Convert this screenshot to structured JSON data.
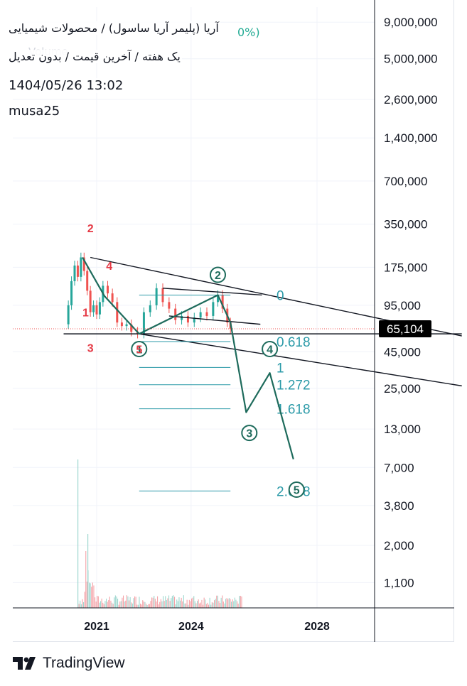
{
  "header": {
    "title": "آریا (پلیمر آریا ساسول) / محصولات شیمیایی",
    "change_fragment": "0%)",
    "subtitle": "یک هفته / آخرین قیمت / بدون تعدیل",
    "datetime": "1404/05/26 13:02",
    "author": "musa25",
    "volume_ghost": "Volume"
  },
  "footer": {
    "brand": "TradingView"
  },
  "colors": {
    "wave": "#1e6b5c",
    "fib": "#2b9aa8",
    "red_label": "#e53945",
    "trend": "#131722",
    "price_badge": "#000000",
    "vol_up": "#9fd7cf",
    "vol_down": "#f4a3a8"
  },
  "chart_data": {
    "type": "candlestick",
    "scale": "log",
    "ylim": [
      700,
      10000000
    ],
    "current_price": 65104,
    "current_price_label": "65,104",
    "y_ticks": [
      {
        "value": 9000000,
        "label": "9,000,000"
      },
      {
        "value": 5000000,
        "label": "5,000,000"
      },
      {
        "value": 2600000,
        "label": "2,600,000"
      },
      {
        "value": 1400000,
        "label": "1,400,000"
      },
      {
        "value": 700000,
        "label": "700,000"
      },
      {
        "value": 350000,
        "label": "350,000"
      },
      {
        "value": 175000,
        "label": "175,000"
      },
      {
        "value": 95000,
        "label": "95,000"
      },
      {
        "value": 45000,
        "label": "45,000"
      },
      {
        "value": 25000,
        "label": "25,000"
      },
      {
        "value": 13000,
        "label": "13,000"
      },
      {
        "value": 7000,
        "label": "7,000"
      },
      {
        "value": 3800,
        "label": "3,800"
      },
      {
        "value": 2000,
        "label": "2,000"
      },
      {
        "value": 1100,
        "label": "1,100"
      }
    ],
    "x_ticks": [
      "2021",
      "2024",
      "2028"
    ],
    "x_range": [
      2019.7,
      2032.6
    ],
    "fib_levels": [
      {
        "value": 112000,
        "label": "0"
      },
      {
        "value": 53000,
        "label": "0.618"
      },
      {
        "value": 35000,
        "label": "1"
      },
      {
        "value": 26500,
        "label": "1.272"
      },
      {
        "value": 18000,
        "label": "1.618"
      },
      {
        "value": 4800,
        "label": "2.618"
      }
    ],
    "wave_path": [
      {
        "x": 2020.55,
        "y": 205000
      },
      {
        "x": 2021.25,
        "y": 110000
      },
      {
        "x": 2022.35,
        "y": 60000
      },
      {
        "x": 2024.85,
        "y": 112000
      },
      {
        "x": 2025.25,
        "y": 72000
      },
      {
        "x": 2025.75,
        "y": 17000
      },
      {
        "x": 2026.5,
        "y": 32000
      },
      {
        "x": 2027.25,
        "y": 8000
      }
    ],
    "wave_labels": [
      {
        "label": "2",
        "x": 2024.85,
        "y": 155000
      },
      {
        "label": "4",
        "x": 2026.5,
        "y": 47000
      },
      {
        "label": "3",
        "x": 2025.85,
        "y": 12200
      },
      {
        "label": "5",
        "x": 2027.35,
        "y": 4900
      },
      {
        "label": "1",
        "x": 2022.35,
        "y": 47000
      }
    ],
    "sub_wave_labels": [
      {
        "label": "2",
        "x": 2020.8,
        "y": 330000
      },
      {
        "label": "4",
        "x": 2021.4,
        "y": 180000
      },
      {
        "label": "1",
        "x": 2020.65,
        "y": 85000
      },
      {
        "label": "3",
        "x": 2020.8,
        "y": 48000
      },
      {
        "label": "5",
        "x": 2022.35,
        "y": 47000
      }
    ],
    "trendlines": [
      {
        "x1": 2020.8,
        "y1": 205000,
        "x2": 2032.6,
        "y2": 58000
      },
      {
        "x1": 2022.35,
        "y1": 60000,
        "x2": 2032.6,
        "y2": 26000
      },
      {
        "x1": 2019.95,
        "y1": 60000,
        "x2": 2032.6,
        "y2": 60000
      },
      {
        "x1": 2023.1,
        "y1": 125000,
        "x2": 2026.25,
        "y2": 112000
      },
      {
        "x1": 2023.3,
        "y1": 80000,
        "x2": 2026.2,
        "y2": 70000
      }
    ],
    "price_series": [
      {
        "x": 2020.0,
        "y": 70000
      },
      {
        "x": 2020.1,
        "y": 95000
      },
      {
        "x": 2020.2,
        "y": 140000
      },
      {
        "x": 2020.3,
        "y": 180000
      },
      {
        "x": 2020.4,
        "y": 150000
      },
      {
        "x": 2020.5,
        "y": 205000
      },
      {
        "x": 2020.6,
        "y": 165000
      },
      {
        "x": 2020.7,
        "y": 120000
      },
      {
        "x": 2020.8,
        "y": 85000
      },
      {
        "x": 2020.9,
        "y": 95000
      },
      {
        "x": 2021.0,
        "y": 82000
      },
      {
        "x": 2021.1,
        "y": 100000
      },
      {
        "x": 2021.2,
        "y": 130000
      },
      {
        "x": 2021.35,
        "y": 115000
      },
      {
        "x": 2021.5,
        "y": 100000
      },
      {
        "x": 2021.65,
        "y": 72000
      },
      {
        "x": 2021.8,
        "y": 68000
      },
      {
        "x": 2021.95,
        "y": 70000
      },
      {
        "x": 2022.1,
        "y": 62000
      },
      {
        "x": 2022.3,
        "y": 60000
      },
      {
        "x": 2022.5,
        "y": 85000
      },
      {
        "x": 2022.7,
        "y": 95000
      },
      {
        "x": 2022.9,
        "y": 125000
      },
      {
        "x": 2023.1,
        "y": 100000
      },
      {
        "x": 2023.3,
        "y": 90000
      },
      {
        "x": 2023.5,
        "y": 75000
      },
      {
        "x": 2023.7,
        "y": 80000
      },
      {
        "x": 2023.9,
        "y": 72000
      },
      {
        "x": 2024.1,
        "y": 78000
      },
      {
        "x": 2024.3,
        "y": 85000
      },
      {
        "x": 2024.5,
        "y": 80000
      },
      {
        "x": 2024.7,
        "y": 100000
      },
      {
        "x": 2024.85,
        "y": 112000
      },
      {
        "x": 2025.0,
        "y": 90000
      },
      {
        "x": 2025.15,
        "y": 72000
      },
      {
        "x": 2025.25,
        "y": 65104
      }
    ]
  }
}
